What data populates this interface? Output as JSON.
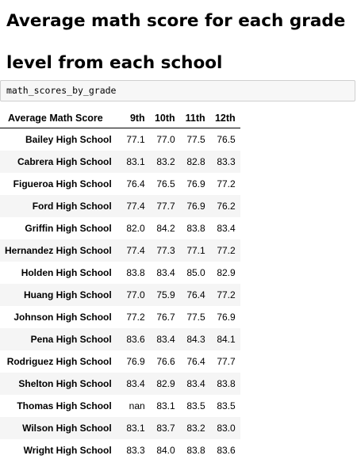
{
  "title": "Average math score for each grade level from each school",
  "code_cell": {
    "text": "math_scores_by_grade"
  },
  "table": {
    "index_header": "Average Math Score",
    "columns": [
      "9th",
      "10th",
      "11th",
      "12th"
    ],
    "rows": [
      {
        "school": "Bailey High School",
        "values": [
          "77.1",
          "77.0",
          "77.5",
          "76.5"
        ]
      },
      {
        "school": "Cabrera High School",
        "values": [
          "83.1",
          "83.2",
          "82.8",
          "83.3"
        ]
      },
      {
        "school": "Figueroa High School",
        "values": [
          "76.4",
          "76.5",
          "76.9",
          "77.2"
        ]
      },
      {
        "school": "Ford High School",
        "values": [
          "77.4",
          "77.7",
          "76.9",
          "76.2"
        ]
      },
      {
        "school": "Griffin High School",
        "values": [
          "82.0",
          "84.2",
          "83.8",
          "83.4"
        ]
      },
      {
        "school": "Hernandez High School",
        "values": [
          "77.4",
          "77.3",
          "77.1",
          "77.2"
        ]
      },
      {
        "school": "Holden High School",
        "values": [
          "83.8",
          "83.4",
          "85.0",
          "82.9"
        ]
      },
      {
        "school": "Huang High School",
        "values": [
          "77.0",
          "75.9",
          "76.4",
          "77.2"
        ]
      },
      {
        "school": "Johnson High School",
        "values": [
          "77.2",
          "76.7",
          "77.5",
          "76.9"
        ]
      },
      {
        "school": "Pena High School",
        "values": [
          "83.6",
          "83.4",
          "84.3",
          "84.1"
        ]
      },
      {
        "school": "Rodriguez High School",
        "values": [
          "76.9",
          "76.6",
          "76.4",
          "77.7"
        ]
      },
      {
        "school": "Shelton High School",
        "values": [
          "83.4",
          "82.9",
          "83.4",
          "83.8"
        ]
      },
      {
        "school": "Thomas High School",
        "values": [
          "nan",
          "83.1",
          "83.5",
          "83.5"
        ]
      },
      {
        "school": "Wilson High School",
        "values": [
          "83.1",
          "83.7",
          "83.2",
          "83.0"
        ]
      },
      {
        "school": "Wright High School",
        "values": [
          "83.3",
          "84.0",
          "83.8",
          "83.6"
        ]
      }
    ]
  }
}
